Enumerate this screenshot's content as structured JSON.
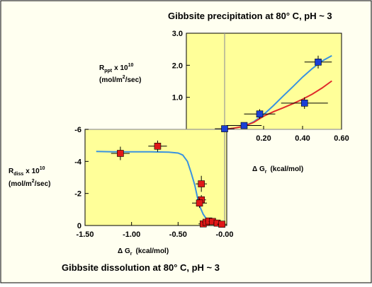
{
  "chart_data": [
    {
      "type": "scatter",
      "panel": "precipitation",
      "title": "Gibbsite precipitation at 80° C, pH ~ 3",
      "xlabel": "Δ G",
      "xlabel_sub": "r",
      "xlabel_units": "(kcal/mol)",
      "ylabel": "R",
      "ylabel_sub": "ppt",
      "ylabel_factor": "x 10",
      "ylabel_factor_exp": "10",
      "ylabel_units": "(mol/m",
      "ylabel_units_exp": "2",
      "ylabel_units_tail": "/sec)",
      "xlim": [
        0,
        0.6
      ],
      "ylim": [
        0,
        3.0
      ],
      "x_ticks": [
        "0.20",
        "0.40",
        "0.60"
      ],
      "y_ticks": [
        "1.0",
        "2.0",
        "3.0"
      ],
      "grid": false,
      "series": [
        {
          "color": "#1a3fd6",
          "marker": "square",
          "points": [
            {
              "x": 0.0,
              "y": 0.02,
              "xerr": 0.05,
              "yerr": 0.05
            },
            {
              "x": 0.1,
              "y": 0.12,
              "xerr": 0.09,
              "yerr": 0.06
            },
            {
              "x": 0.18,
              "y": 0.48,
              "xerr": 0.08,
              "yerr": 0.15
            },
            {
              "x": 0.41,
              "y": 0.82,
              "xerr": 0.12,
              "yerr": 0.18
            },
            {
              "x": 0.48,
              "y": 2.1,
              "xerr": 0.07,
              "yerr": 0.2
            }
          ]
        }
      ],
      "curves": [
        {
          "color": "#3a93e0",
          "x": [
            0.0,
            0.05,
            0.1,
            0.15,
            0.2,
            0.25,
            0.3,
            0.35,
            0.4,
            0.45,
            0.5,
            0.55
          ],
          "y": [
            0.0,
            0.04,
            0.1,
            0.24,
            0.46,
            0.74,
            1.04,
            1.33,
            1.63,
            1.9,
            2.13,
            2.3
          ]
        },
        {
          "color": "#e02b2b",
          "x": [
            0.0,
            0.05,
            0.1,
            0.15,
            0.2,
            0.25,
            0.3,
            0.35,
            0.4,
            0.45,
            0.5,
            0.55
          ],
          "y": [
            0.0,
            0.04,
            0.1,
            0.22,
            0.41,
            0.55,
            0.67,
            0.8,
            0.94,
            1.1,
            1.29,
            1.51
          ]
        }
      ]
    },
    {
      "type": "scatter",
      "panel": "dissolution",
      "title": "Gibbsite dissolution at 80° C, pH ~ 3",
      "xlabel": "Δ G",
      "xlabel_sub": "r",
      "xlabel_units": "(kcal/mol)",
      "ylabel": "R",
      "ylabel_sub": "diss",
      "ylabel_factor": "x 10",
      "ylabel_factor_exp": "10",
      "ylabel_units": "(mol/m",
      "ylabel_units_exp": "2",
      "ylabel_units_tail": "/sec)",
      "xlim": [
        -1.5,
        0
      ],
      "ylim": [
        -6,
        0
      ],
      "x_ticks": [
        "-1.50",
        "-1.00",
        "-0.50",
        "-0.00"
      ],
      "y_ticks": [
        "0",
        "-2",
        "-4",
        "-6"
      ],
      "grid": false,
      "series": [
        {
          "color": "#e01818",
          "marker": "square",
          "points": [
            {
              "x": -1.12,
              "y": -4.5,
              "xerr": 0.1,
              "yerr": 0.42
            },
            {
              "x": -0.72,
              "y": -4.95,
              "xerr": 0.1,
              "yerr": 0.35
            },
            {
              "x": -0.25,
              "y": -2.6,
              "xerr": 0.06,
              "yerr": 0.5
            },
            {
              "x": -0.25,
              "y": -1.6,
              "xerr": 0.05,
              "yerr": 0.3
            },
            {
              "x": -0.27,
              "y": -1.4,
              "xerr": 0.08,
              "yerr": 0.3
            },
            {
              "x": -0.23,
              "y": -0.1,
              "xerr": 0.05,
              "yerr": 0.12
            },
            {
              "x": -0.2,
              "y": -0.2,
              "xerr": 0.04,
              "yerr": 0.1
            },
            {
              "x": -0.17,
              "y": -0.28,
              "xerr": 0.04,
              "yerr": 0.1
            },
            {
              "x": -0.13,
              "y": -0.25,
              "xerr": 0.04,
              "yerr": 0.1
            },
            {
              "x": -0.08,
              "y": -0.15,
              "xerr": 0.04,
              "yerr": 0.1
            },
            {
              "x": -0.03,
              "y": -0.08,
              "xerr": 0.05,
              "yerr": 0.1
            }
          ]
        }
      ],
      "curves": [
        {
          "color": "#3a93e0",
          "x": [
            -1.38,
            -1.2,
            -1.0,
            -0.8,
            -0.6,
            -0.5,
            -0.45,
            -0.4,
            -0.36,
            -0.32,
            -0.29,
            -0.26,
            -0.23,
            -0.2,
            -0.15,
            -0.1,
            -0.05,
            0.0
          ],
          "y": [
            -4.62,
            -4.6,
            -4.6,
            -4.6,
            -4.58,
            -4.52,
            -4.4,
            -4.0,
            -3.3,
            -2.5,
            -1.7,
            -1.1,
            -0.7,
            -0.45,
            -0.22,
            -0.1,
            -0.03,
            0.0
          ]
        }
      ]
    }
  ]
}
